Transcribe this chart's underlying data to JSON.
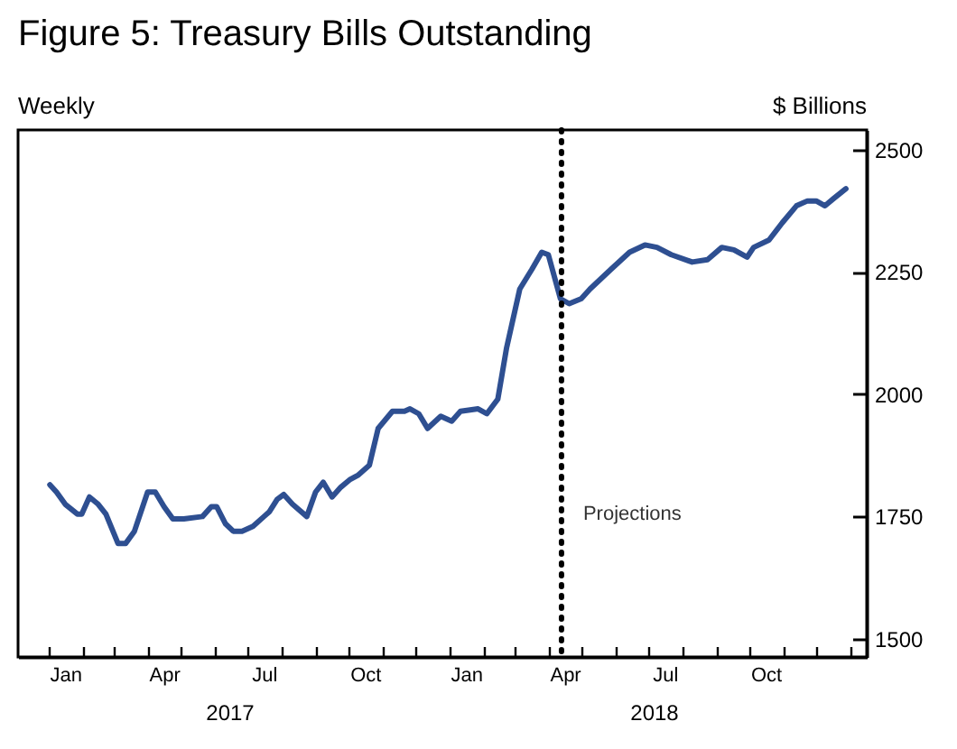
{
  "chart_data": {
    "type": "line",
    "title": "Figure 5: Treasury Bills Outstanding",
    "ylabel": "$ Billions",
    "annotations": [
      "Weekly",
      "2017",
      "2018"
    ],
    "x": [
      "2017-01-02",
      "2017-01-08",
      "2017-01-16",
      "2017-01-27",
      "2017-01-31",
      "2017-02-07",
      "2017-02-15",
      "2017-02-22",
      "2017-03-05",
      "2017-03-12",
      "2017-03-20",
      "2017-04-01",
      "2017-04-08",
      "2017-04-16",
      "2017-04-24",
      "2017-05-04",
      "2017-05-21",
      "2017-05-29",
      "2017-06-03",
      "2017-06-11",
      "2017-06-18",
      "2017-06-26",
      "2017-07-06",
      "2017-07-16",
      "2017-07-21",
      "2017-07-28",
      "2017-08-03",
      "2017-08-11",
      "2017-08-24",
      "2017-09-01",
      "2017-09-08",
      "2017-09-16",
      "2017-09-24",
      "2017-10-02",
      "2017-10-10",
      "2017-10-20",
      "2017-10-28",
      "2017-11-10",
      "2017-11-21",
      "2017-11-26",
      "2017-12-04",
      "2017-12-12",
      "2017-12-24",
      "2018-01-03",
      "2018-01-11",
      "2018-01-27",
      "2018-02-04",
      "2018-02-14",
      "2018-02-22",
      "2018-03-06",
      "2018-03-17",
      "2018-03-26",
      "2018-04-01",
      "2018-04-12",
      "2018-04-20",
      "2018-05-01",
      "2018-05-09",
      "2018-05-28",
      "2018-06-14",
      "2018-06-28",
      "2018-07-09",
      "2018-07-22",
      "2018-08-10",
      "2018-08-24",
      "2018-09-06",
      "2018-09-17",
      "2018-09-29",
      "2018-10-05",
      "2018-10-19",
      "2018-10-31",
      "2018-11-13",
      "2018-11-23",
      "2018-12-01",
      "2018-12-09",
      "2018-12-17",
      "2018-12-28"
    ],
    "series": [
      {
        "color": "#2e4f91",
        "values": [
          1815,
          1800,
          1775,
          1755,
          1755,
          1790,
          1775,
          1755,
          1695,
          1695,
          1720,
          1800,
          1800,
          1770,
          1745,
          1745,
          1750,
          1770,
          1770,
          1735,
          1720,
          1720,
          1730,
          1750,
          1760,
          1785,
          1795,
          1775,
          1750,
          1800,
          1820,
          1790,
          1810,
          1825,
          1835,
          1855,
          1930,
          1965,
          1965,
          1970,
          1960,
          1930,
          1955,
          1945,
          1965,
          1970,
          1960,
          1990,
          2095,
          2215,
          2255,
          2290,
          2285,
          2195,
          2185,
          2195,
          2215,
          2255,
          2290,
          2305,
          2300,
          2285,
          2270,
          2275,
          2300,
          2295,
          2280,
          2300,
          2315,
          2350,
          2385,
          2395,
          2395,
          2385,
          2400,
          2420
        ]
      }
    ],
    "xlim": [
      "2016-12-04",
      "2019-01-16"
    ],
    "xticks": [
      {
        "value": "2017-01-01",
        "label": null
      },
      {
        "value": "2017-02-01",
        "label": null
      },
      {
        "value": "2017-03-01",
        "label": null
      },
      {
        "value": "2017-04-01",
        "label": null
      },
      {
        "value": "2017-05-01",
        "label": null
      },
      {
        "value": "2017-06-01",
        "label": null
      },
      {
        "value": "2017-07-01",
        "label": null
      },
      {
        "value": "2017-08-01",
        "label": null
      },
      {
        "value": "2017-09-01",
        "label": null
      },
      {
        "value": "2017-10-01",
        "label": null
      },
      {
        "value": "2017-11-01",
        "label": null
      },
      {
        "value": "2017-12-01",
        "label": null
      },
      {
        "value": "2018-01-01",
        "label": null
      },
      {
        "value": "2018-02-01",
        "label": null
      },
      {
        "value": "2018-03-01",
        "label": null
      },
      {
        "value": "2018-04-01",
        "label": null
      },
      {
        "value": "2018-05-01",
        "label": null
      },
      {
        "value": "2018-06-01",
        "label": null
      },
      {
        "value": "2018-07-01",
        "label": null
      },
      {
        "value": "2018-08-01",
        "label": null
      },
      {
        "value": "2018-09-01",
        "label": null
      },
      {
        "value": "2018-10-01",
        "label": null
      },
      {
        "value": "2018-11-01",
        "label": null
      },
      {
        "value": "2018-12-01",
        "label": null
      },
      {
        "value": "2019-01-01",
        "label": null
      },
      {
        "value": "2017-01-16",
        "label": "Jan"
      },
      {
        "value": "2017-04-16",
        "label": "Apr"
      },
      {
        "value": "2017-07-16",
        "label": "Jul"
      },
      {
        "value": "2017-10-16",
        "label": "Oct"
      },
      {
        "value": "2018-01-16",
        "label": "Jan"
      },
      {
        "value": "2018-04-16",
        "label": "Apr"
      },
      {
        "value": "2018-07-16",
        "label": "Jul"
      },
      {
        "value": "2018-10-16",
        "label": "Oct"
      }
    ],
    "ylim": [
      1463,
      2540
    ],
    "yticks": [
      1500,
      1750,
      2000,
      2250,
      2500
    ],
    "ref_lines": [
      {
        "axis": "x",
        "value": "2018-04-13",
        "label": "Projections",
        "color": "#000000",
        "line_style": "dotted"
      }
    ],
    "grid": false
  }
}
